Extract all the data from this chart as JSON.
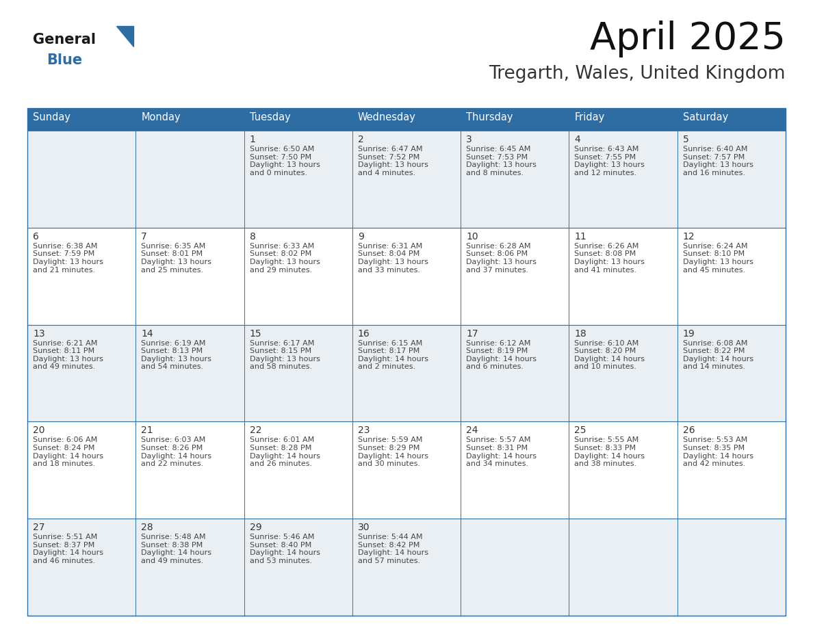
{
  "title": "April 2025",
  "subtitle": "Tregarth, Wales, United Kingdom",
  "header_bg_color": "#2E6DA4",
  "header_text_color": "#FFFFFF",
  "day_names": [
    "Sunday",
    "Monday",
    "Tuesday",
    "Wednesday",
    "Thursday",
    "Friday",
    "Saturday"
  ],
  "row_bg_colors": [
    "#EAEFF4",
    "#FFFFFF"
  ],
  "border_color": "#2E6DA4",
  "cell_text_color": "#444444",
  "day_num_color": "#333333",
  "logo_general_color": "#1a1a1a",
  "logo_blue_color": "#2E6DA4",
  "calendar_data": [
    [
      {
        "day": "",
        "info": ""
      },
      {
        "day": "",
        "info": ""
      },
      {
        "day": "1",
        "info": "Sunrise: 6:50 AM\nSunset: 7:50 PM\nDaylight: 13 hours\nand 0 minutes."
      },
      {
        "day": "2",
        "info": "Sunrise: 6:47 AM\nSunset: 7:52 PM\nDaylight: 13 hours\nand 4 minutes."
      },
      {
        "day": "3",
        "info": "Sunrise: 6:45 AM\nSunset: 7:53 PM\nDaylight: 13 hours\nand 8 minutes."
      },
      {
        "day": "4",
        "info": "Sunrise: 6:43 AM\nSunset: 7:55 PM\nDaylight: 13 hours\nand 12 minutes."
      },
      {
        "day": "5",
        "info": "Sunrise: 6:40 AM\nSunset: 7:57 PM\nDaylight: 13 hours\nand 16 minutes."
      }
    ],
    [
      {
        "day": "6",
        "info": "Sunrise: 6:38 AM\nSunset: 7:59 PM\nDaylight: 13 hours\nand 21 minutes."
      },
      {
        "day": "7",
        "info": "Sunrise: 6:35 AM\nSunset: 8:01 PM\nDaylight: 13 hours\nand 25 minutes."
      },
      {
        "day": "8",
        "info": "Sunrise: 6:33 AM\nSunset: 8:02 PM\nDaylight: 13 hours\nand 29 minutes."
      },
      {
        "day": "9",
        "info": "Sunrise: 6:31 AM\nSunset: 8:04 PM\nDaylight: 13 hours\nand 33 minutes."
      },
      {
        "day": "10",
        "info": "Sunrise: 6:28 AM\nSunset: 8:06 PM\nDaylight: 13 hours\nand 37 minutes."
      },
      {
        "day": "11",
        "info": "Sunrise: 6:26 AM\nSunset: 8:08 PM\nDaylight: 13 hours\nand 41 minutes."
      },
      {
        "day": "12",
        "info": "Sunrise: 6:24 AM\nSunset: 8:10 PM\nDaylight: 13 hours\nand 45 minutes."
      }
    ],
    [
      {
        "day": "13",
        "info": "Sunrise: 6:21 AM\nSunset: 8:11 PM\nDaylight: 13 hours\nand 49 minutes."
      },
      {
        "day": "14",
        "info": "Sunrise: 6:19 AM\nSunset: 8:13 PM\nDaylight: 13 hours\nand 54 minutes."
      },
      {
        "day": "15",
        "info": "Sunrise: 6:17 AM\nSunset: 8:15 PM\nDaylight: 13 hours\nand 58 minutes."
      },
      {
        "day": "16",
        "info": "Sunrise: 6:15 AM\nSunset: 8:17 PM\nDaylight: 14 hours\nand 2 minutes."
      },
      {
        "day": "17",
        "info": "Sunrise: 6:12 AM\nSunset: 8:19 PM\nDaylight: 14 hours\nand 6 minutes."
      },
      {
        "day": "18",
        "info": "Sunrise: 6:10 AM\nSunset: 8:20 PM\nDaylight: 14 hours\nand 10 minutes."
      },
      {
        "day": "19",
        "info": "Sunrise: 6:08 AM\nSunset: 8:22 PM\nDaylight: 14 hours\nand 14 minutes."
      }
    ],
    [
      {
        "day": "20",
        "info": "Sunrise: 6:06 AM\nSunset: 8:24 PM\nDaylight: 14 hours\nand 18 minutes."
      },
      {
        "day": "21",
        "info": "Sunrise: 6:03 AM\nSunset: 8:26 PM\nDaylight: 14 hours\nand 22 minutes."
      },
      {
        "day": "22",
        "info": "Sunrise: 6:01 AM\nSunset: 8:28 PM\nDaylight: 14 hours\nand 26 minutes."
      },
      {
        "day": "23",
        "info": "Sunrise: 5:59 AM\nSunset: 8:29 PM\nDaylight: 14 hours\nand 30 minutes."
      },
      {
        "day": "24",
        "info": "Sunrise: 5:57 AM\nSunset: 8:31 PM\nDaylight: 14 hours\nand 34 minutes."
      },
      {
        "day": "25",
        "info": "Sunrise: 5:55 AM\nSunset: 8:33 PM\nDaylight: 14 hours\nand 38 minutes."
      },
      {
        "day": "26",
        "info": "Sunrise: 5:53 AM\nSunset: 8:35 PM\nDaylight: 14 hours\nand 42 minutes."
      }
    ],
    [
      {
        "day": "27",
        "info": "Sunrise: 5:51 AM\nSunset: 8:37 PM\nDaylight: 14 hours\nand 46 minutes."
      },
      {
        "day": "28",
        "info": "Sunrise: 5:48 AM\nSunset: 8:38 PM\nDaylight: 14 hours\nand 49 minutes."
      },
      {
        "day": "29",
        "info": "Sunrise: 5:46 AM\nSunset: 8:40 PM\nDaylight: 14 hours\nand 53 minutes."
      },
      {
        "day": "30",
        "info": "Sunrise: 5:44 AM\nSunset: 8:42 PM\nDaylight: 14 hours\nand 57 minutes."
      },
      {
        "day": "",
        "info": ""
      },
      {
        "day": "",
        "info": ""
      },
      {
        "day": "",
        "info": ""
      }
    ]
  ],
  "fig_width": 11.88,
  "fig_height": 9.18,
  "dpi": 100
}
